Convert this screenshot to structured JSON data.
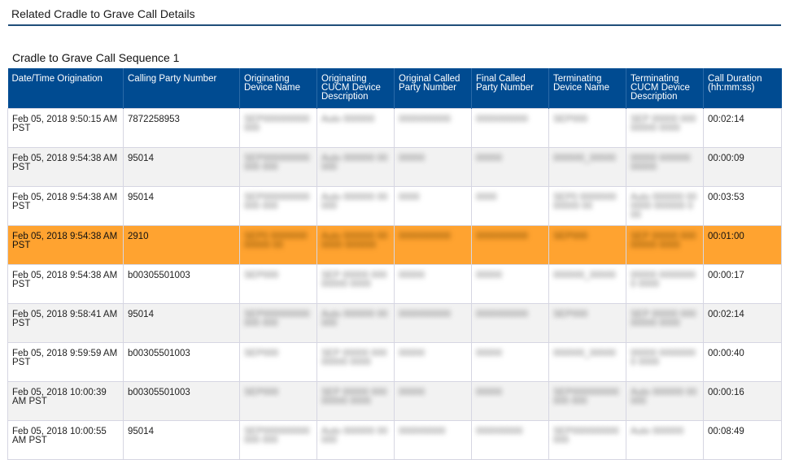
{
  "page": {
    "title": "Related Cradle to Grave Call Details"
  },
  "section": {
    "title": "Cradle to Grave Call Sequence 1"
  },
  "table": {
    "columns": [
      "Date/Time Origination",
      "Calling Party Number",
      "Originating Device Name",
      "Originating CUCM Device Description",
      "Original Called Party Number",
      "Final Called Party Number",
      "Terminating Device Name",
      "Terminating CUCM Device Description",
      "Call Duration (hh:mm:ss)"
    ],
    "rows": [
      {
        "datetime": "Feb 05, 2018 9:50:15 AM PST",
        "calling": "7872258953",
        "orig_device": "SEP000000000000",
        "orig_desc": "Auto 000000",
        "orig_called": "0000000000",
        "final_called": "0000000000",
        "term_device": "SEP000",
        "term_desc": "SEP 00000 00000000 0000",
        "duration": "00:02:14",
        "selected": false
      },
      {
        "datetime": "Feb 05, 2018 9:54:38 AM PST",
        "calling": "95014",
        "orig_device": "SEP000000000000 000",
        "orig_desc": "Auto 000000 00000",
        "orig_called": "00000",
        "final_called": "00000",
        "term_device": "000000_00000",
        "term_desc": "00000 000000 00000",
        "duration": "00:00:09",
        "selected": false
      },
      {
        "datetime": "Feb 05, 2018 9:54:38 AM PST",
        "calling": "95014",
        "orig_device": "SEP000000000000 000",
        "orig_desc": "Auto 000000 00000",
        "orig_called": "0000",
        "final_called": "0000",
        "term_device": "SEP0 000000000000 00",
        "term_desc": "Auto 000000 000000 000000 000",
        "duration": "00:03:53",
        "selected": false
      },
      {
        "datetime": "Feb 05, 2018 9:54:38 AM PST",
        "calling": "2910",
        "orig_device": "SEP0 000000000000 00",
        "orig_desc": "Auto 000000 000000 000000",
        "orig_called": "0000000000",
        "final_called": "0000000000",
        "term_device": "SEP000",
        "term_desc": "SEP 00000 00000000 0000",
        "duration": "00:01:00",
        "selected": true
      },
      {
        "datetime": "Feb 05, 2018 9:54:38 AM PST",
        "calling": "b00305501003",
        "orig_device": "SEP000",
        "orig_desc": "SEP 00000 00000000 0000",
        "orig_called": "00000",
        "final_called": "00000",
        "term_device": "000000_00000",
        "term_desc": "00000 00000000 0000",
        "duration": "00:00:17",
        "selected": false
      },
      {
        "datetime": "Feb 05, 2018 9:58:41 AM PST",
        "calling": "95014",
        "orig_device": "SEP000000000000 000",
        "orig_desc": "Auto 000000 00000",
        "orig_called": "0000000000",
        "final_called": "0000000000",
        "term_device": "SEP000",
        "term_desc": "SEP 00000 00000000 0000",
        "duration": "00:02:14",
        "selected": false
      },
      {
        "datetime": "Feb 05, 2018 9:59:59 AM PST",
        "calling": "b00305501003",
        "orig_device": "SEP000",
        "orig_desc": "SEP 00000 00000000 0000",
        "orig_called": "00000",
        "final_called": "00000",
        "term_device": "000000_00000",
        "term_desc": "00000 00000000 0000",
        "duration": "00:00:40",
        "selected": false
      },
      {
        "datetime": "Feb 05, 2018 10:00:39 AM PST",
        "calling": "b00305501003",
        "orig_device": "SEP000",
        "orig_desc": "SEP 00000 00000000 0000",
        "orig_called": "00000",
        "final_called": "00000",
        "term_device": "SEP000000000000 000",
        "term_desc": "Auto 000000 00000",
        "duration": "00:00:16",
        "selected": false
      },
      {
        "datetime": "Feb 05, 2018 10:00:55 AM PST",
        "calling": "95014",
        "orig_device": "SEP000000000000 000",
        "orig_desc": "Auto 000000 00000",
        "orig_called": "000000000",
        "final_called": "000000000",
        "term_device": "SEP000000000000",
        "term_desc": "Auto 000000",
        "duration": "00:08:49",
        "selected": false
      }
    ]
  },
  "colors": {
    "header_bg": "#004b91",
    "selected_row": "#ffa330",
    "title_rule": "#1f4e79"
  }
}
